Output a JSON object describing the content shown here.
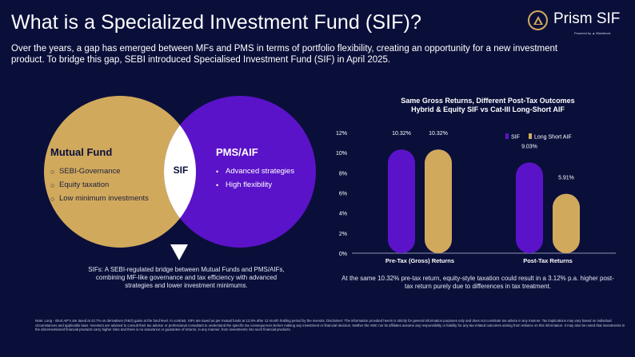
{
  "header": {
    "title": "What is a Specialized Investment Fund (SIF)?",
    "subtitle": "Over the years, a gap has emerged between MFs and PMS in terms of portfolio flexibility, creating an opportunity for a new investment product. To bridge this gap, SEBI introduced Specialised Investment Fund (SIF) in April 2025."
  },
  "logo": {
    "name": "Prism SIF",
    "tagline": "Powered by ▲ Blackbuck"
  },
  "colors": {
    "background": "#0a0f3a",
    "gold": "#d1a95d",
    "purple": "#5b13c9",
    "white": "#ffffff"
  },
  "venn": {
    "left": {
      "title": "Mutual Fund",
      "items": [
        "SEBI-Governance",
        "Equity taxation",
        "Low minimum investments"
      ]
    },
    "center": "SIF",
    "right": {
      "title": "PMS/AIF",
      "items": [
        "Advanced strategies",
        "High flexibility"
      ]
    },
    "description": "SIFs: A SEBI-regulated bridge between Mutual Funds and PMS/AIFs, combining MF-like governance and tax efficiency with advanced strategies and lower investment minimums."
  },
  "chart_data": {
    "type": "bar",
    "title": "Same Gross Returns, Different Post-Tax Outcomes",
    "subtitle": "Hybrid & Equity SIF vs Cat-III Long-Short AIF",
    "categories": [
      "Pre-Tax (Gross) Returns",
      "Post-Tax Returns"
    ],
    "series": [
      {
        "name": "SIF",
        "color": "#5b13c9",
        "values": [
          10.32,
          9.03
        ],
        "labels": [
          "10.32%",
          "9.03%"
        ]
      },
      {
        "name": "Long Short AIF",
        "color": "#d1a95d",
        "values": [
          10.32,
          5.91
        ],
        "labels": [
          "10.32%",
          "5.91%"
        ]
      }
    ],
    "yticks": [
      "0%",
      "2%",
      "4%",
      "6%",
      "8%",
      "10%",
      "12%"
    ],
    "ylim": [
      0,
      12
    ],
    "legend_position": "top-right",
    "grid": false
  },
  "chart_note": "At the same 10.32% pre-tax return, equity-style taxation could result in a 3.12% p.a. higher post-tax return purely due to differences in tax treatment.",
  "footnote": "Note: Long - short AIF's are taxed at 42.7% on derivatives (F&O) gains at the fund level. In contrast, SIFs are taxed as per mutual funds at 12.5% after 12 month holding period  by the investor. Disclaimer: The information provided herein is strictly for general information purposes only and does not constitute tax advice in any manner. Tax implications may vary based on individual circumstances and applicable laws. Investors are advised to consult their tax advisor or professional consultant to understand the specific tax consequences before making any investment or financial decision. Neither the AMC nor its affiliates assume any responsibility or liability for any tax-related outcomes arising from reliance on this information. It may also be noted that investments in the aforementioned financial products carry higher risks and there is no assurance or guarantee of returns, in any manner, from investments into such financial products."
}
